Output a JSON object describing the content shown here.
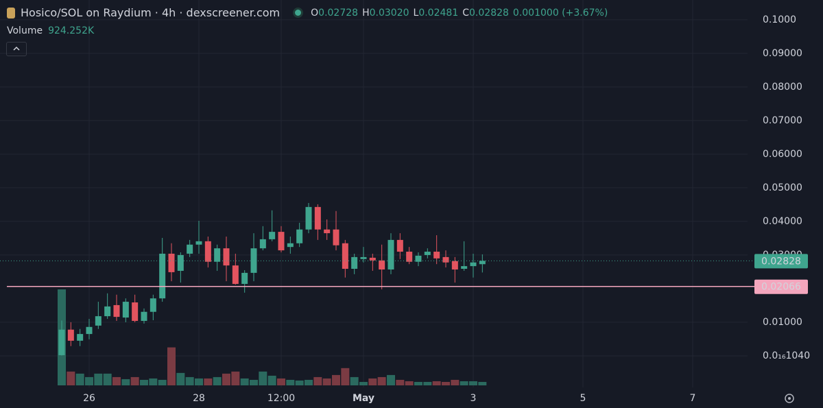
{
  "chart_data": {
    "type": "candlestick",
    "title": "Hosico/SOL on Raydium · 4h · dexscreener.com",
    "legend": {
      "open_label": "O",
      "open": "0.02728",
      "high_label": "H",
      "high": "0.03020",
      "low_label": "L",
      "low": "0.02481",
      "close_label": "C",
      "close": "0.02828",
      "change": "0.001000 (+3.67%)"
    },
    "volume_label": "Volume",
    "volume_value": "924.252K",
    "up_color": "#3fa58e",
    "down_color": "#e3545f",
    "up_volume_color": "#2b6a5f",
    "down_volume_color": "#7b3b43",
    "x": [
      -12,
      -8,
      -4,
      0,
      4,
      8,
      12,
      16,
      20,
      24,
      28,
      32,
      36,
      40,
      44,
      48,
      52,
      56,
      60,
      64,
      68,
      72,
      76,
      80,
      84,
      88,
      92,
      96,
      100,
      104,
      108,
      112,
      116,
      120,
      124,
      128,
      132,
      136,
      140,
      144,
      148,
      152,
      156,
      160,
      164,
      168,
      172
    ],
    "open": [
      0.0002,
      0.0078,
      0.0045,
      0.0065,
      0.009,
      0.0118,
      0.0151,
      0.0114,
      0.0159,
      0.0104,
      0.0131,
      0.0171,
      0.0304,
      0.0253,
      0.0304,
      0.0331,
      0.0341,
      0.028,
      0.032,
      0.0269,
      0.0214,
      0.0247,
      0.032,
      0.0347,
      0.0369,
      0.0324,
      0.0335,
      0.0376,
      0.0443,
      0.0376,
      0.0376,
      0.0335,
      0.0259,
      0.0288,
      0.0292,
      0.0284,
      0.0257,
      0.0345,
      0.031,
      0.028,
      0.03,
      0.031,
      0.0294,
      0.0282,
      0.0259,
      0.0267,
      0.02728
    ],
    "high": [
      0.0105,
      0.01,
      0.008,
      0.011,
      0.0161,
      0.0186,
      0.0182,
      0.0171,
      0.0182,
      0.0141,
      0.0182,
      0.0351,
      0.0335,
      0.0308,
      0.0345,
      0.0402,
      0.0355,
      0.0331,
      0.0355,
      0.0304,
      0.0255,
      0.0365,
      0.0386,
      0.0433,
      0.0386,
      0.0355,
      0.0396,
      0.0455,
      0.0451,
      0.0406,
      0.0431,
      0.0345,
      0.0304,
      0.0324,
      0.0304,
      0.0331,
      0.0365,
      0.0365,
      0.0324,
      0.0308,
      0.032,
      0.0359,
      0.0314,
      0.0294,
      0.0341,
      0.0304,
      0.0302
    ],
    "low": [
      0.0001,
      0.0029,
      0.0029,
      0.0049,
      0.008,
      0.011,
      0.0104,
      0.01,
      0.01,
      0.0096,
      0.0106,
      0.0161,
      0.0222,
      0.0218,
      0.0294,
      0.0304,
      0.0263,
      0.0253,
      0.0222,
      0.0212,
      0.0188,
      0.0222,
      0.0314,
      0.0341,
      0.0308,
      0.0304,
      0.0324,
      0.0365,
      0.0345,
      0.0345,
      0.0314,
      0.0233,
      0.0243,
      0.0278,
      0.0253,
      0.0198,
      0.0243,
      0.0288,
      0.0273,
      0.0267,
      0.029,
      0.0273,
      0.0263,
      0.0218,
      0.0253,
      0.0233,
      0.02481
    ],
    "close": [
      0.0078,
      0.0045,
      0.0065,
      0.0086,
      0.0118,
      0.0147,
      0.0116,
      0.0161,
      0.0104,
      0.0131,
      0.0171,
      0.0304,
      0.0249,
      0.03,
      0.0331,
      0.0341,
      0.028,
      0.032,
      0.0269,
      0.0214,
      0.0247,
      0.032,
      0.0347,
      0.0369,
      0.0314,
      0.0335,
      0.0376,
      0.0443,
      0.0376,
      0.0365,
      0.0329,
      0.0259,
      0.0294,
      0.0294,
      0.0284,
      0.0257,
      0.0345,
      0.031,
      0.028,
      0.0298,
      0.031,
      0.029,
      0.0278,
      0.0257,
      0.0267,
      0.0278,
      0.02828
    ],
    "volume": [
      25715000,
      3700000,
      3145000,
      2220000,
      3145000,
      3145000,
      2220000,
      1665000,
      2220000,
      1480000,
      1850000,
      1480000,
      10175000,
      3330000,
      2220000,
      1850000,
      1850000,
      2220000,
      3145000,
      3700000,
      1850000,
      1480000,
      3700000,
      2590000,
      1850000,
      1480000,
      1295000,
      1480000,
      2220000,
      1850000,
      2775000,
      4625000,
      2220000,
      925000,
      1850000,
      2220000,
      2775000,
      1480000,
      1110000,
      925000,
      925000,
      1110000,
      925000,
      1480000,
      1110000,
      1110000,
      924252
    ],
    "xlim": [
      -39,
      288
    ],
    "xticks": [
      {
        "value": 0,
        "label": "26"
      },
      {
        "value": 48,
        "label": "28"
      },
      {
        "value": 84,
        "label": "12:00"
      },
      {
        "value": 120,
        "label": "May"
      },
      {
        "value": 168,
        "label": "3"
      },
      {
        "value": 216,
        "label": "5"
      },
      {
        "value": 264,
        "label": "7"
      }
    ],
    "ylim": [
      -0.0094,
      0.1059
    ],
    "yticks": [
      {
        "value": 0.1,
        "label": "0.1000"
      },
      {
        "value": 0.09,
        "label": "0.09000"
      },
      {
        "value": 0.08,
        "label": "0.08000"
      },
      {
        "value": 0.07,
        "label": "0.07000"
      },
      {
        "value": 0.06,
        "label": "0.06000"
      },
      {
        "value": 0.05,
        "label": "0.05000"
      },
      {
        "value": 0.04,
        "label": "0.04000"
      },
      {
        "value": 0.03,
        "label": "0.03000"
      },
      {
        "value": 0.01,
        "label": "0.01000"
      },
      {
        "value": 1.04e-17,
        "label": "0.0₁₆1040"
      }
    ],
    "grid": true,
    "price_line": 0.02066,
    "price_line_color": "#f4a6bd"
  }
}
